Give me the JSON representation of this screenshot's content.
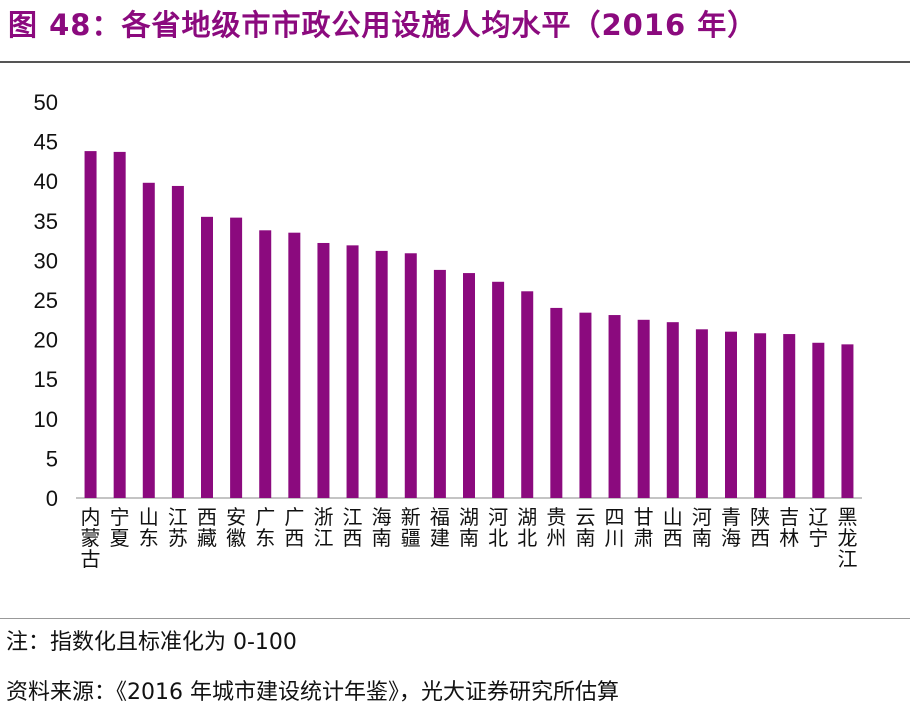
{
  "title": "图 48：各省地级市市政公用设施人均水平（2016 年）",
  "notes": {
    "note": "注：指数化且标准化为 0-100",
    "source": "资料来源：《2016 年城市建设统计年鉴》，光大证券研究所估算"
  },
  "colors": {
    "bar": "#8B0A7E",
    "title": "#8B0A7E"
  },
  "chart_data": {
    "type": "bar",
    "title": "",
    "xlabel": "",
    "ylabel": "",
    "ylim": [
      0,
      50
    ],
    "yticks": [
      0,
      5,
      10,
      15,
      20,
      25,
      30,
      35,
      40,
      45,
      50
    ],
    "grid": false,
    "categories": [
      "内蒙古",
      "宁夏",
      "山东",
      "江苏",
      "西藏",
      "安徽",
      "广东",
      "广西",
      "浙江",
      "江西",
      "海南",
      "新疆",
      "福建",
      "湖南",
      "河北",
      "湖北",
      "贵州",
      "云南",
      "四川",
      "甘肃",
      "山西",
      "河南",
      "青海",
      "陕西",
      "吉林",
      "辽宁",
      "黑龙江"
    ],
    "values": [
      43.8,
      43.7,
      39.8,
      39.4,
      35.5,
      35.4,
      33.8,
      33.5,
      32.2,
      31.9,
      31.2,
      30.9,
      28.8,
      28.4,
      27.3,
      26.1,
      24.0,
      23.4,
      23.1,
      22.5,
      22.2,
      21.3,
      21.0,
      20.8,
      20.7,
      19.6,
      19.4
    ]
  }
}
